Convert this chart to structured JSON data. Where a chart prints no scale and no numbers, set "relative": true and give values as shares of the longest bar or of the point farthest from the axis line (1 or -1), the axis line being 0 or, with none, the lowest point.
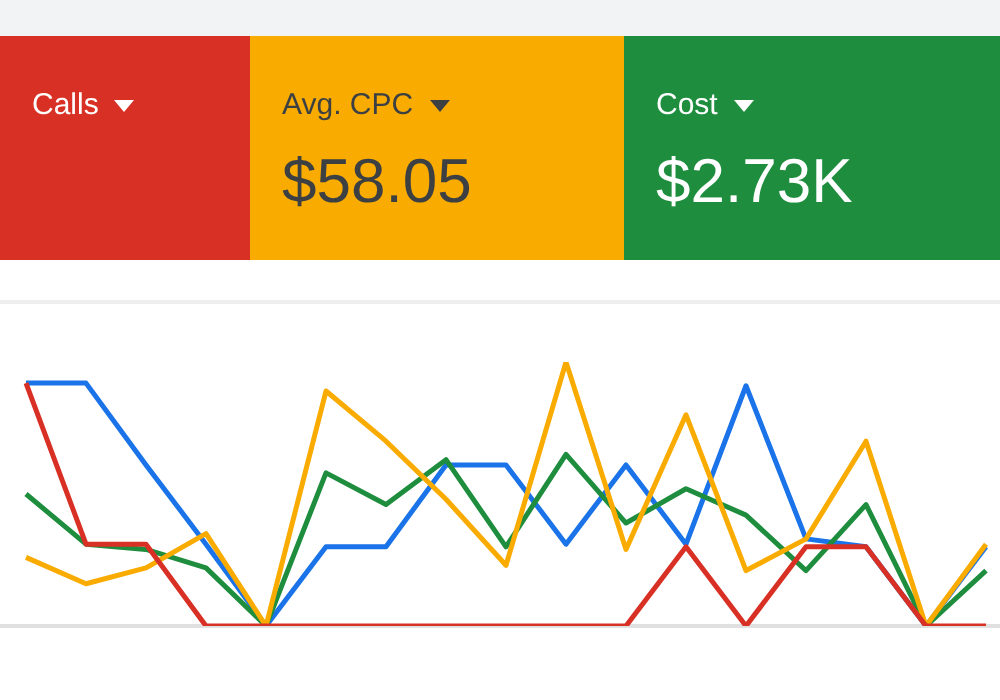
{
  "chart_data": [
    {
      "type": "other",
      "title": "Calls"
    },
    {
      "type": "other",
      "title": "Avg. CPC",
      "subtitle": "$58.05"
    },
    {
      "type": "other",
      "title": "Cost",
      "subtitle": "$2.73K"
    },
    {
      "type": "line",
      "relative": true,
      "marker": "none",
      "line_style": "solid",
      "legend": false,
      "categories": [
        null,
        null,
        null,
        null,
        null,
        null,
        null,
        null,
        null,
        null,
        null,
        null,
        null,
        null,
        null,
        null,
        null
      ],
      "series": [
        {
          "color": "#1a73e8",
          "values": [
            0.92,
            0.92,
            0.61,
            0.31,
            0,
            0.3,
            0.3,
            0.61,
            0.61,
            0.31,
            0.61,
            0.31,
            0.91,
            0.33,
            0.3,
            0,
            0.3
          ]
        },
        {
          "color": "#1e8e3e",
          "values": [
            0.5,
            0.31,
            0.29,
            0.22,
            0,
            0.58,
            0.46,
            0.63,
            0.3,
            0.65,
            0.39,
            0.52,
            0.42,
            0.21,
            0.46,
            0,
            0.21
          ]
        },
        {
          "color": "#f9ab00",
          "values": [
            0.26,
            0.16,
            0.22,
            0.35,
            0,
            0.89,
            0.7,
            0.48,
            0.23,
            1,
            0.29,
            0.8,
            0.21,
            0.33,
            0.7,
            0,
            0.31
          ]
        },
        {
          "color": "#d93025",
          "values": [
            0.92,
            0.31,
            0.31,
            0,
            0,
            0,
            0,
            0,
            0,
            0,
            0,
            0.3,
            0,
            0.3,
            0.3,
            0,
            0
          ]
        }
      ]
    }
  ]
}
